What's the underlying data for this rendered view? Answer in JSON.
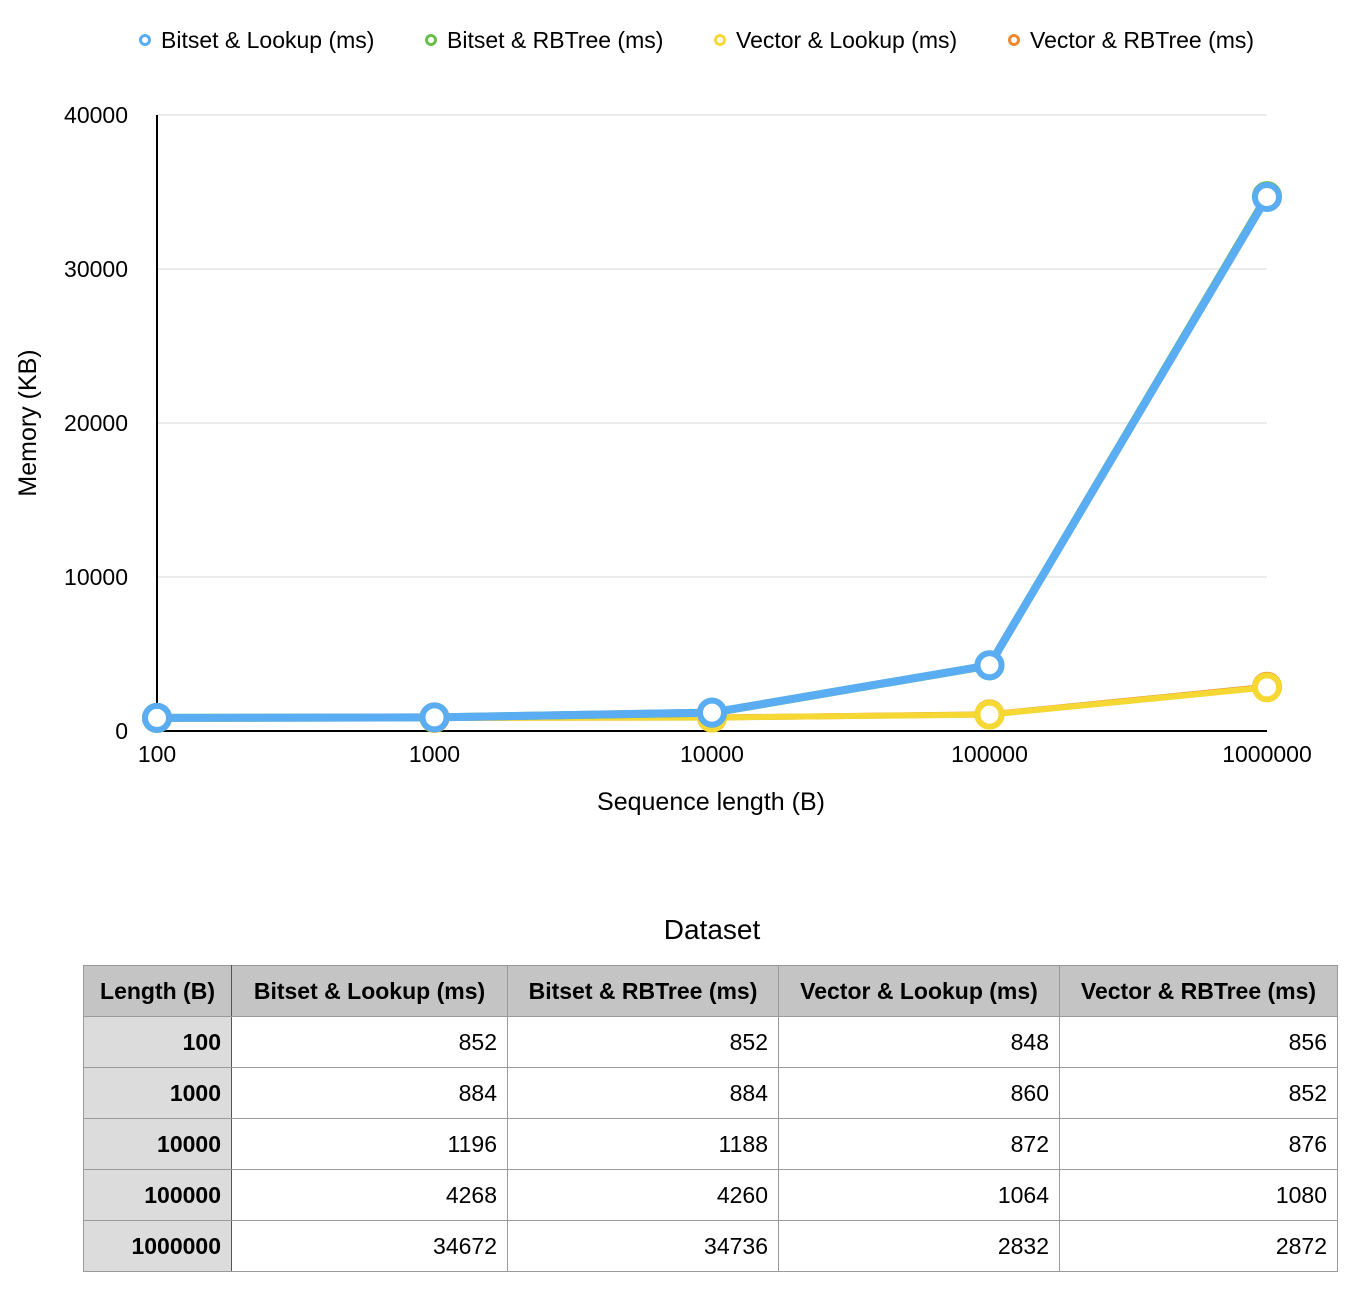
{
  "chart_data": {
    "type": "line",
    "title": "",
    "xlabel": "Sequence length (B)",
    "ylabel": "Memory (KB)",
    "categories": [
      "100",
      "1000",
      "10000",
      "100000",
      "1000000"
    ],
    "yticks": [
      "0",
      "10000",
      "20000",
      "30000",
      "40000"
    ],
    "ylim": [
      0,
      40000
    ],
    "grid": true,
    "legend_position": "top",
    "series": [
      {
        "name": "Bitset & Lookup (ms)",
        "color": "#5aadf2",
        "values": [
          852,
          884,
          1196,
          4268,
          34672
        ]
      },
      {
        "name": "Bitset & RBTree (ms)",
        "color": "#6abf4b",
        "values": [
          852,
          884,
          1188,
          4260,
          34736
        ]
      },
      {
        "name": "Vector & Lookup (ms)",
        "color": "#f5d833",
        "values": [
          848,
          860,
          872,
          1064,
          2832
        ]
      },
      {
        "name": "Vector & RBTree (ms)",
        "color": "#ea8a32",
        "values": [
          856,
          852,
          876,
          1080,
          2872
        ]
      }
    ]
  },
  "table": {
    "title": "Dataset",
    "headers": [
      "Length (B)",
      "Bitset & Lookup (ms)",
      "Bitset & RBTree (ms)",
      "Vector & Lookup (ms)",
      "Vector & RBTree (ms)"
    ],
    "rows": [
      [
        "100",
        "852",
        "852",
        "848",
        "856"
      ],
      [
        "1000",
        "884",
        "884",
        "860",
        "852"
      ],
      [
        "10000",
        "1196",
        "1188",
        "872",
        "876"
      ],
      [
        "100000",
        "4268",
        "4260",
        "1064",
        "1080"
      ],
      [
        "1000000",
        "34672",
        "34736",
        "2832",
        "2872"
      ]
    ]
  }
}
